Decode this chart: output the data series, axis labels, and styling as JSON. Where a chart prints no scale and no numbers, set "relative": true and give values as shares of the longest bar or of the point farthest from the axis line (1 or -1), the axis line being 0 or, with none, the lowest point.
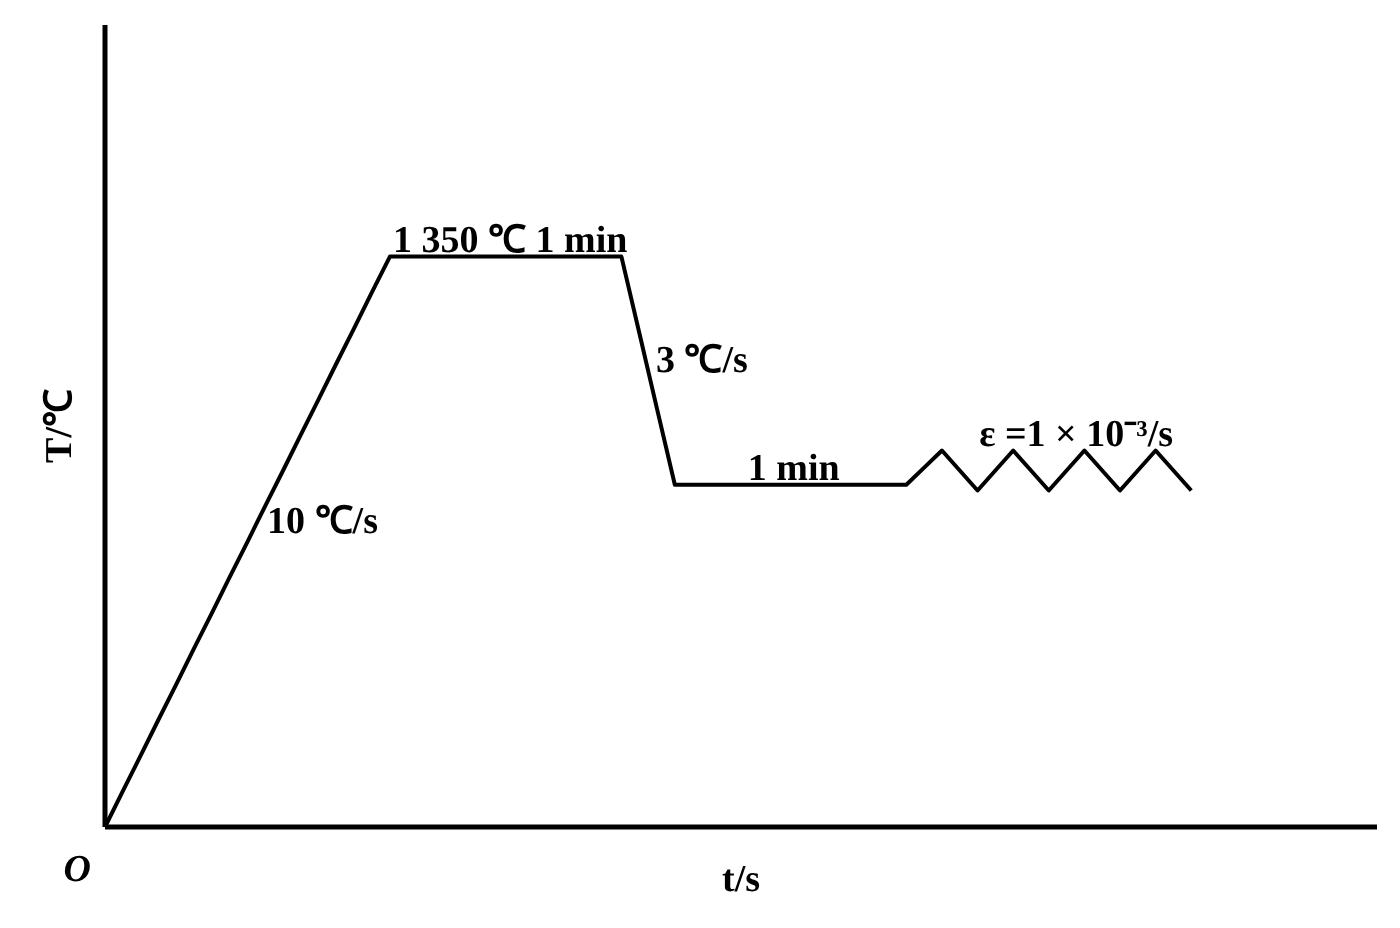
{
  "chart_data": {
    "type": "line",
    "relative": true,
    "xlabel": "t/s",
    "ylabel": "T/℃",
    "categories": [
      null,
      null,
      null,
      null,
      null,
      null,
      null,
      null,
      null,
      null,
      null,
      null,
      null,
      null,
      null,
      null,
      null,
      null,
      null,
      null,
      null,
      null,
      null,
      null,
      null,
      null,
      null,
      null,
      null,
      null,
      null,
      null,
      null,
      null,
      null,
      null,
      null,
      null,
      null,
      null,
      null,
      null,
      null,
      null,
      null,
      null,
      null,
      null,
      null,
      null,
      null,
      null,
      null,
      null,
      null,
      null,
      null,
      null,
      null,
      null,
      null,
      null
    ],
    "values": [
      0,
      0.063,
      0.125,
      0.188,
      0.25,
      0.313,
      0.375,
      0.438,
      0.5,
      0.563,
      0.625,
      0.688,
      0.75,
      0.813,
      0.875,
      0.938,
      1,
      1,
      1,
      1,
      1,
      1,
      1,
      1,
      1,
      1,
      1,
      1,
      1,
      1,
      0.867,
      0.733,
      0.6,
      0.6,
      0.6,
      0.6,
      0.6,
      0.6,
      0.6,
      0.6,
      0.6,
      0.6,
      0.6,
      0.6,
      0.6,
      0.6,
      0.63,
      0.66,
      0.625,
      0.59,
      0.625,
      0.66,
      0.625,
      0.59,
      0.625,
      0.66,
      0.625,
      0.59,
      0.625,
      0.66,
      0.625,
      0.59
    ],
    "color": "#000000",
    "line_style": "solid",
    "annotations": [
      "1 350 ℃ 1 min",
      "10 ℃/s",
      "3 ℃/s",
      "1 min",
      "ε =1 × 10⁻³/s",
      "O"
    ]
  }
}
